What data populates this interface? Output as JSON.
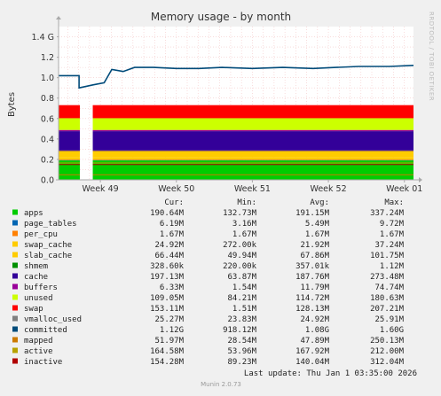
{
  "chart_data": {
    "type": "area",
    "title": "Memory usage - by month",
    "ylabel": "Bytes",
    "side_label": "RRDTOOL / TOBI OETIKER",
    "yticks": [
      "0.0",
      "0.2",
      "0.4",
      "0.6",
      "0.8",
      "1.0",
      "1.2",
      "1.4 G"
    ],
    "ylim": [
      0,
      1.5
    ],
    "y_unit": "G",
    "xticks": [
      {
        "label": "Week 49",
        "pos": 49
      },
      {
        "label": "Week 50",
        "pos": 50
      },
      {
        "label": "Week 51",
        "pos": 51
      },
      {
        "label": "Week 52",
        "pos": 52
      },
      {
        "label": "Week 01",
        "pos": 53
      }
    ],
    "xlim": [
      48.45,
      53.12
    ],
    "gap": [
      48.73,
      48.9
    ],
    "grid": true,
    "stack": [
      {
        "name": "apps",
        "color": "#00cc00",
        "level": 0.19
      },
      {
        "name": "page_tables",
        "color": "#0066b3",
        "level": 0.006
      },
      {
        "name": "per_cpu",
        "color": "#ff8000",
        "level": 0.0017
      },
      {
        "name": "swap_cache",
        "color": "#ffcc00",
        "level": 0.022
      },
      {
        "name": "slab_cache",
        "color": "#ffcc00",
        "level": 0.068
      },
      {
        "name": "shmem",
        "color": "#330099",
        "level": 0.0004
      },
      {
        "name": "cache",
        "color": "#330099",
        "level": 0.188
      },
      {
        "name": "buffers",
        "color": "#990099",
        "level": 0.012
      },
      {
        "name": "unused",
        "color": "#ccff00",
        "level": 0.115
      },
      {
        "name": "swap",
        "color": "#ff0000",
        "level": 0.128
      }
    ],
    "committed_line": {
      "color": "#004b7a",
      "points": [
        [
          48.45,
          1.02
        ],
        [
          48.72,
          1.02
        ],
        [
          48.72,
          0.9
        ],
        [
          48.91,
          0.93
        ],
        [
          49.05,
          0.95
        ],
        [
          49.15,
          1.08
        ],
        [
          49.3,
          1.06
        ],
        [
          49.45,
          1.1
        ],
        [
          49.7,
          1.1
        ],
        [
          50.0,
          1.09
        ],
        [
          50.3,
          1.09
        ],
        [
          50.6,
          1.1
        ],
        [
          51.0,
          1.09
        ],
        [
          51.4,
          1.1
        ],
        [
          51.8,
          1.09
        ],
        [
          52.1,
          1.1
        ],
        [
          52.4,
          1.11
        ],
        [
          52.8,
          1.11
        ],
        [
          53.12,
          1.12
        ]
      ]
    },
    "line_series": [
      {
        "name": "committed",
        "color": "#004b7a"
      },
      {
        "name": "mapped",
        "color": "#cc7a00"
      },
      {
        "name": "active",
        "color": "#b8a200"
      },
      {
        "name": "inactive",
        "color": "#b00000"
      }
    ],
    "legend_header": [
      "Cur:",
      "Min:",
      "Avg:",
      "Max:"
    ],
    "legend": [
      {
        "name": "apps",
        "color": "#00cc00",
        "cur": "190.64M",
        "min": "132.73M",
        "avg": "191.15M",
        "max": "337.24M"
      },
      {
        "name": "page_tables",
        "color": "#0066b3",
        "cur": "6.19M",
        "min": "3.16M",
        "avg": "5.49M",
        "max": "9.72M"
      },
      {
        "name": "per_cpu",
        "color": "#ff8000",
        "cur": "1.67M",
        "min": "1.67M",
        "avg": "1.67M",
        "max": "1.67M"
      },
      {
        "name": "swap_cache",
        "color": "#ffcc00",
        "cur": "24.92M",
        "min": "272.00k",
        "avg": "21.92M",
        "max": "37.24M"
      },
      {
        "name": "slab_cache",
        "color": "#ffcc00",
        "cur": "66.44M",
        "min": "49.94M",
        "avg": "67.86M",
        "max": "101.75M"
      },
      {
        "name": "shmem",
        "color": "#008f00",
        "cur": "328.60k",
        "min": "220.00k",
        "avg": "357.01k",
        "max": "1.12M"
      },
      {
        "name": "cache",
        "color": "#330099",
        "cur": "197.13M",
        "min": "63.87M",
        "avg": "187.76M",
        "max": "273.48M"
      },
      {
        "name": "buffers",
        "color": "#990099",
        "cur": "6.33M",
        "min": "1.54M",
        "avg": "11.79M",
        "max": "74.74M"
      },
      {
        "name": "unused",
        "color": "#ccff00",
        "cur": "109.05M",
        "min": "84.21M",
        "avg": "114.72M",
        "max": "180.63M"
      },
      {
        "name": "swap",
        "color": "#ff0000",
        "cur": "153.11M",
        "min": "1.51M",
        "avg": "128.13M",
        "max": "207.21M"
      },
      {
        "name": "vmalloc_used",
        "color": "#808080",
        "cur": "25.27M",
        "min": "23.83M",
        "avg": "24.92M",
        "max": "25.91M"
      },
      {
        "name": "committed",
        "color": "#004b7a",
        "cur": "1.12G",
        "min": "918.12M",
        "avg": "1.08G",
        "max": "1.60G"
      },
      {
        "name": "mapped",
        "color": "#cc7a00",
        "cur": "51.97M",
        "min": "28.54M",
        "avg": "47.89M",
        "max": "250.13M"
      },
      {
        "name": "active",
        "color": "#b8a200",
        "cur": "164.58M",
        "min": "53.96M",
        "avg": "167.92M",
        "max": "212.00M"
      },
      {
        "name": "inactive",
        "color": "#b00000",
        "cur": "154.28M",
        "min": "89.23M",
        "avg": "140.04M",
        "max": "312.04M"
      }
    ],
    "last_update": "Last update: Thu Jan  1 03:35:00 2026",
    "version": "Munin 2.0.73"
  }
}
